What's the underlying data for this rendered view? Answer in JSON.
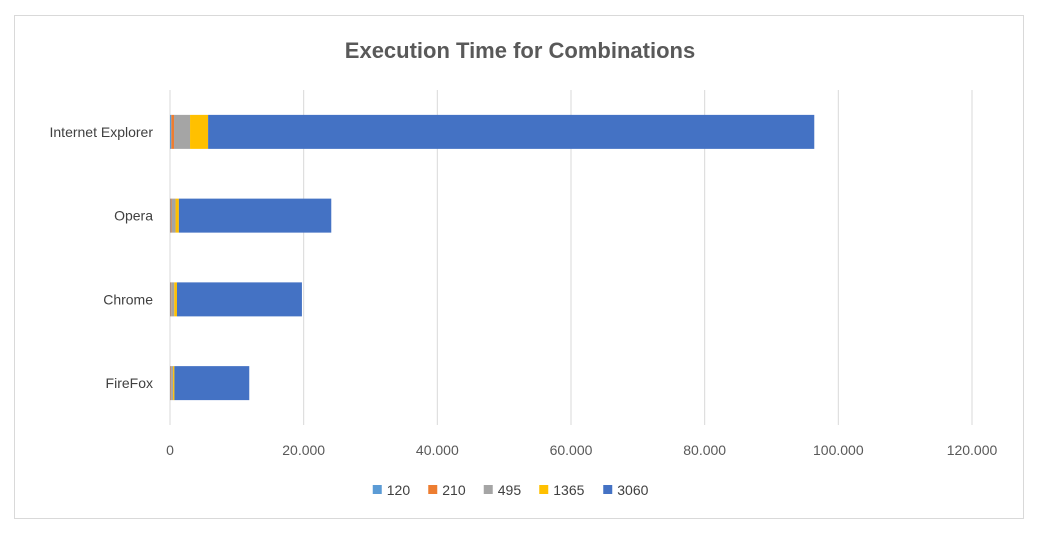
{
  "chart_data": {
    "type": "bar",
    "orientation": "horizontal",
    "stacked": true,
    "title": "Execution Time for Combinations",
    "categories": [
      "Internet Explorer",
      "Opera",
      "Chrome",
      "FireFox"
    ],
    "series": [
      {
        "name": "120",
        "color": "#5b9bd5",
        "values": [
          200,
          80,
          70,
          60
        ]
      },
      {
        "name": "210",
        "color": "#ed7d31",
        "values": [
          400,
          150,
          120,
          100
        ]
      },
      {
        "name": "495",
        "color": "#a5a5a5",
        "values": [
          2400,
          600,
          450,
          300
        ]
      },
      {
        "name": "1365",
        "color": "#ffc000",
        "values": [
          2700,
          500,
          400,
          200
        ]
      },
      {
        "name": "3060",
        "color": "#4472c4",
        "values": [
          90700,
          22800,
          18700,
          11200
        ]
      }
    ],
    "xlim": [
      0,
      120000
    ],
    "x_ticks": [
      "0",
      "20.000",
      "40.000",
      "60.000",
      "80.000",
      "100.000",
      "120.000"
    ],
    "grid": "vertical",
    "legend": "bottom"
  }
}
